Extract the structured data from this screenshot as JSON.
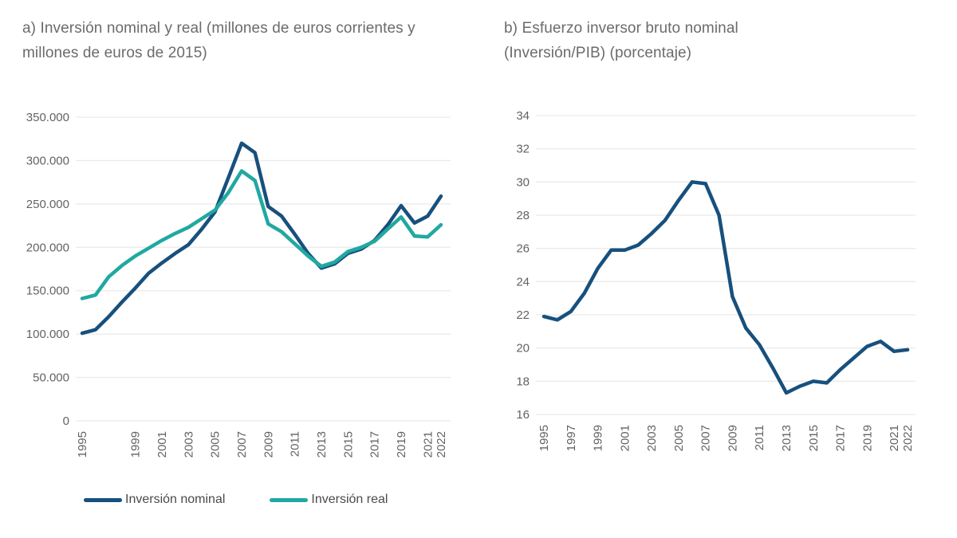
{
  "style": {
    "background": "#ffffff",
    "grid_color": "#eaeaea",
    "tick_color": "#636363",
    "title_color": "#6b6b6b",
    "nominal_color": "#17507d",
    "real_color": "#21a8a1"
  },
  "legend": {
    "items": [
      {
        "label": "Inversión nominal",
        "color": "#17507d"
      },
      {
        "label": "Inversión real",
        "color": "#21a8a1"
      }
    ]
  },
  "chart_data": [
    {
      "type": "line",
      "title": "a) Inversión nominal y real (millones de euros corrientes y millones de euros de 2015)",
      "x": [
        1995,
        1996,
        1997,
        1998,
        1999,
        2000,
        2001,
        2002,
        2003,
        2004,
        2005,
        2006,
        2007,
        2008,
        2009,
        2010,
        2011,
        2012,
        2013,
        2014,
        2015,
        2016,
        2017,
        2018,
        2019,
        2020,
        2021,
        2022
      ],
      "series": [
        {
          "name": "Inversión nominal",
          "color": "#17507d",
          "values": [
            101000,
            105000,
            120000,
            137000,
            153000,
            170000,
            182000,
            193000,
            203000,
            221000,
            241000,
            280000,
            320000,
            309000,
            247000,
            236000,
            215000,
            193000,
            176000,
            181000,
            193000,
            198000,
            208000,
            226000,
            248000,
            228000,
            236000,
            259000
          ]
        },
        {
          "name": "Inversión real",
          "color": "#21a8a1",
          "values": [
            141000,
            145000,
            166000,
            179000,
            190000,
            199000,
            208000,
            216000,
            223000,
            233000,
            243000,
            263000,
            288000,
            277000,
            227000,
            218000,
            204000,
            190000,
            178000,
            183000,
            195000,
            200000,
            207000,
            221000,
            235000,
            213000,
            212000,
            226000
          ]
        }
      ],
      "ylim": [
        0,
        350000
      ],
      "y_ticks": [
        {
          "value": 0,
          "label": "0"
        },
        {
          "value": 50000,
          "label": "50.000"
        },
        {
          "value": 100000,
          "label": "100.000"
        },
        {
          "value": 150000,
          "label": "150.000"
        },
        {
          "value": 200000,
          "label": "200.000"
        },
        {
          "value": 250000,
          "label": "250.000"
        },
        {
          "value": 300000,
          "label": "300.000"
        },
        {
          "value": 350000,
          "label": "350.000"
        }
      ],
      "x_tick_labels": [
        "1995",
        "1999",
        "2001",
        "2003",
        "2005",
        "2007",
        "2009",
        "2011",
        "2013",
        "2015",
        "2017",
        "2019",
        "2021",
        "2022"
      ],
      "grid": true,
      "legend_position": "bottom"
    },
    {
      "type": "line",
      "title": "b) Esfuerzo inversor bruto nominal (Inversión/PIB) (porcentaje)",
      "x": [
        1995,
        1996,
        1997,
        1998,
        1999,
        2000,
        2001,
        2002,
        2003,
        2004,
        2005,
        2006,
        2007,
        2008,
        2009,
        2010,
        2011,
        2012,
        2013,
        2014,
        2015,
        2016,
        2017,
        2018,
        2019,
        2020,
        2021,
        2022
      ],
      "series": [
        {
          "name": "Esfuerzo inversor bruto nominal",
          "color": "#17507d",
          "values": [
            21.9,
            21.7,
            22.2,
            23.3,
            24.8,
            25.9,
            25.9,
            26.2,
            26.9,
            27.7,
            28.9,
            30.0,
            29.9,
            28.0,
            23.1,
            21.2,
            20.2,
            18.8,
            17.3,
            17.7,
            18.0,
            17.9,
            18.7,
            19.4,
            20.1,
            20.4,
            19.8,
            19.9
          ]
        }
      ],
      "ylim": [
        16,
        34
      ],
      "y_ticks": [
        {
          "value": 16,
          "label": "16"
        },
        {
          "value": 18,
          "label": "18"
        },
        {
          "value": 20,
          "label": "20"
        },
        {
          "value": 22,
          "label": "22"
        },
        {
          "value": 24,
          "label": "24"
        },
        {
          "value": 26,
          "label": "26"
        },
        {
          "value": 28,
          "label": "28"
        },
        {
          "value": 30,
          "label": "30"
        },
        {
          "value": 32,
          "label": "32"
        },
        {
          "value": 34,
          "label": "34"
        }
      ],
      "x_tick_labels": [
        "1995",
        "1997",
        "1999",
        "2001",
        "2003",
        "2005",
        "2007",
        "2009",
        "2011",
        "2013",
        "2015",
        "2017",
        "2019",
        "2021",
        "2022"
      ],
      "grid": true,
      "legend_position": "none"
    }
  ]
}
